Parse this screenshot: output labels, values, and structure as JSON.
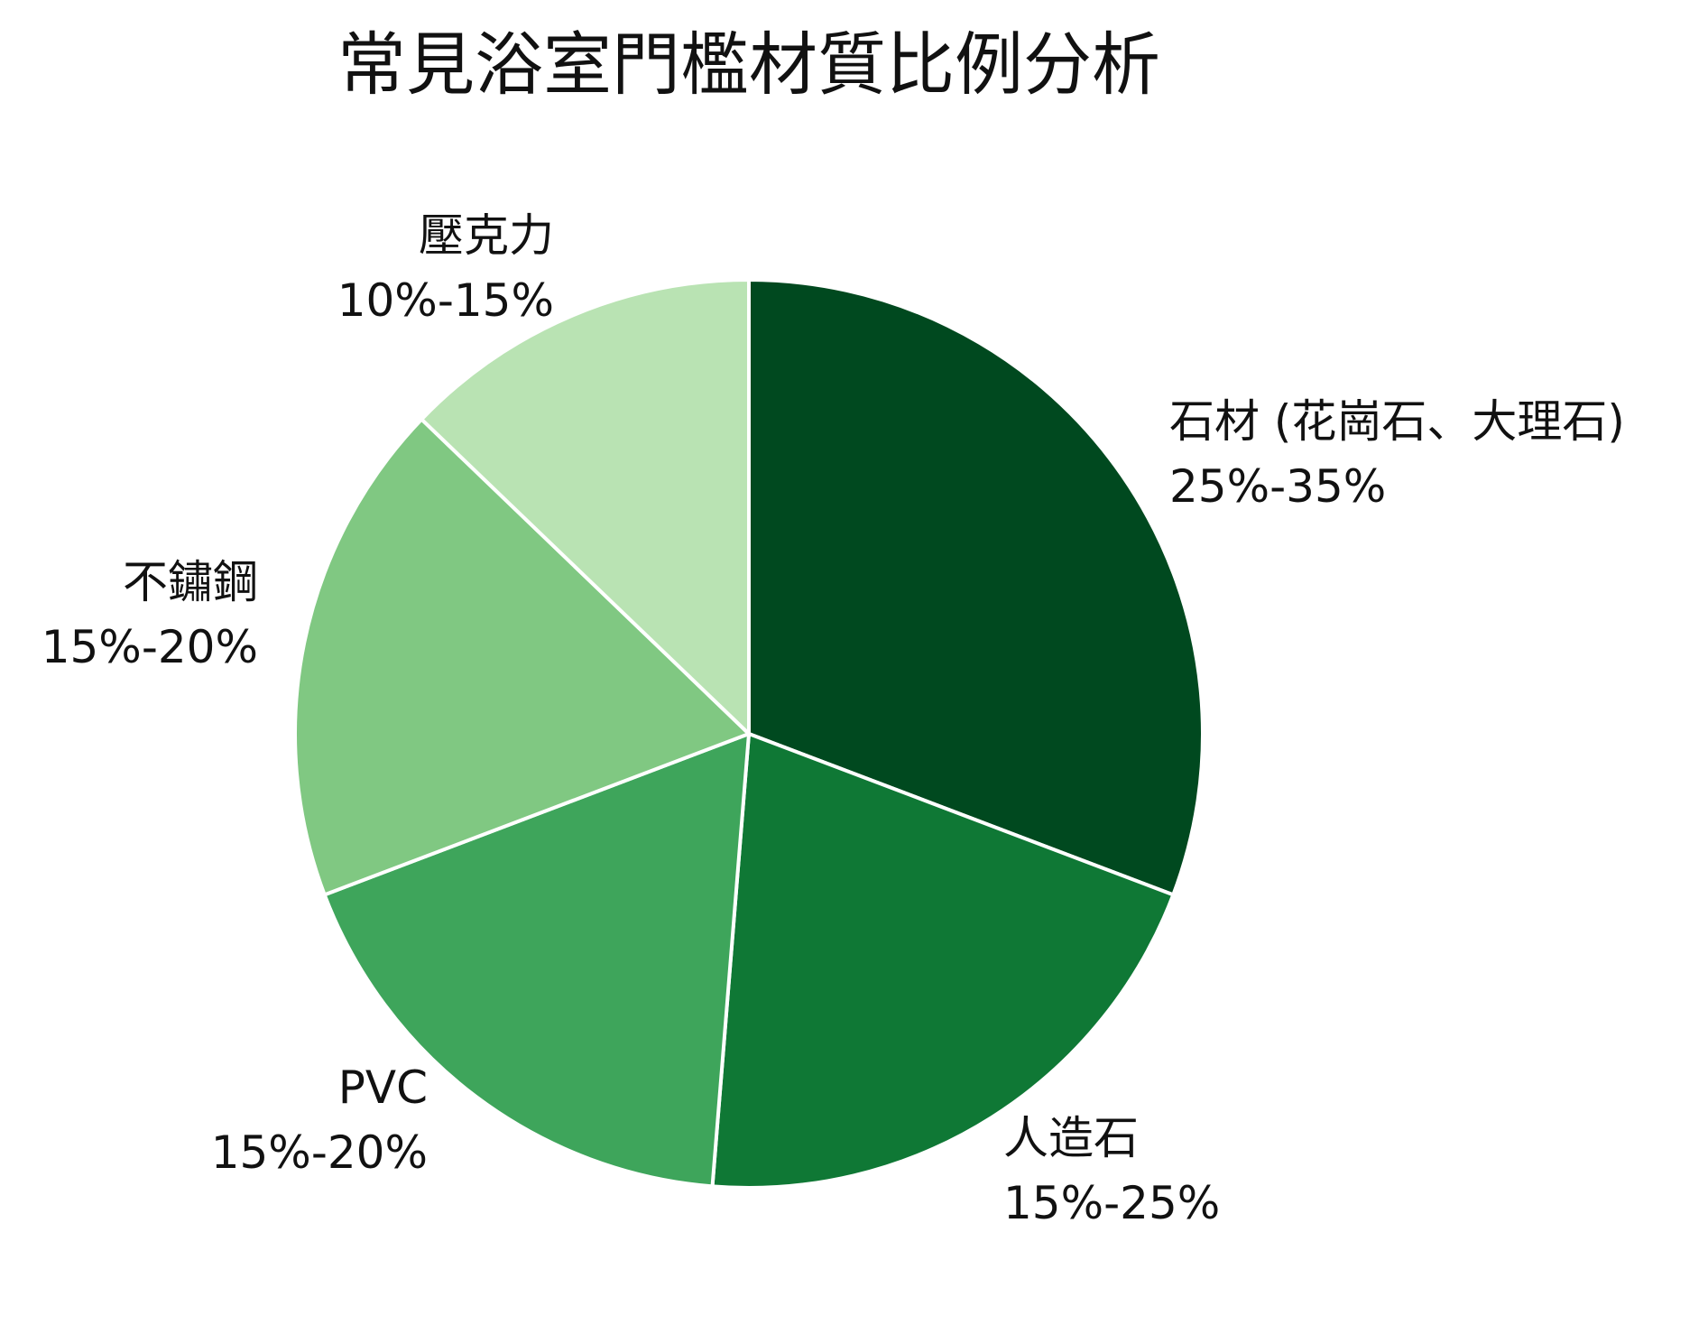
{
  "chart_data": {
    "type": "pie",
    "title": "常見浴室門檻材質比例分析",
    "slices": [
      {
        "label": "石材 (花崗石、大理石)",
        "range_label": "25%-35%",
        "value": 30,
        "color": "#00491f"
      },
      {
        "label": "人造石",
        "range_label": "15%-25%",
        "value": 20,
        "color": "#0f7835"
      },
      {
        "label": "PVC",
        "range_label": "15%-20%",
        "value": 17.5,
        "color": "#3ea55b"
      },
      {
        "label": "不鏽鋼",
        "range_label": "15%-20%",
        "value": 17.5,
        "color": "#80c882"
      },
      {
        "label": "壓克力",
        "range_label": "10%-15%",
        "value": 12.5,
        "color": "#b9e3b3"
      }
    ],
    "start_angle": "12 o'clock",
    "direction": "clockwise",
    "legend": "none"
  }
}
